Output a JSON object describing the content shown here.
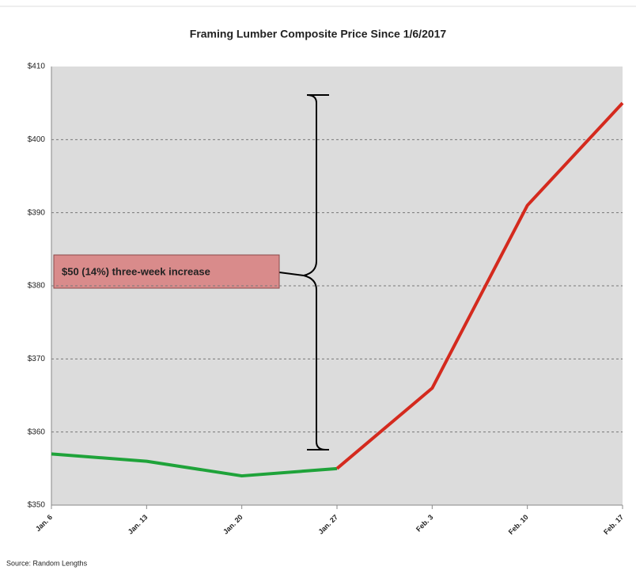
{
  "chart_data": {
    "type": "line",
    "title": "Framing Lumber Composite Price Since 1/6/2017",
    "categories": [
      "Jan. 6",
      "Jan. 13",
      "Jan. 20",
      "Jan. 27",
      "Feb. 3",
      "Feb. 10",
      "Feb. 17"
    ],
    "series": [
      {
        "color": "#1fa33a",
        "values": [
          357,
          356,
          354,
          355,
          null,
          null,
          null
        ]
      },
      {
        "color": "#d42a1e",
        "values": [
          null,
          null,
          null,
          355,
          366,
          391,
          405
        ]
      }
    ],
    "ylim": [
      350,
      410
    ],
    "yticks": [
      {
        "value": 350,
        "label": "$350"
      },
      {
        "value": 360,
        "label": "$360"
      },
      {
        "value": 370,
        "label": "$370"
      },
      {
        "value": 380,
        "label": "$380"
      },
      {
        "value": 390,
        "label": "$390"
      },
      {
        "value": 400,
        "label": "$400"
      },
      {
        "value": 410,
        "label": "$410"
      }
    ],
    "grid": true,
    "annotation": "$50 (14%) three-week increase",
    "source": "Source: Random Lengths"
  }
}
